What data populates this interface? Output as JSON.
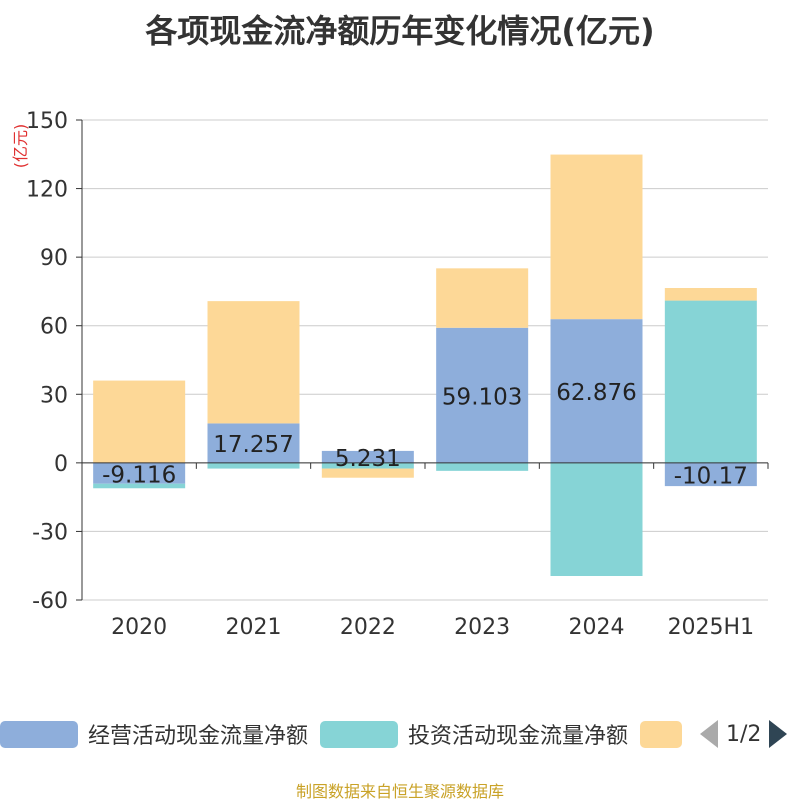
{
  "title": "各项现金流净额历年变化情况(亿元)",
  "source": "制图数据来自恒生聚源数据库",
  "pager": {
    "text": "1/2",
    "prev_icon": "triangle-left-icon",
    "next_icon": "triangle-right-icon"
  },
  "colors": {
    "operating": "#8eaedb",
    "investing": "#86d4d6",
    "financing": "#fdd897",
    "ylabel": "#e03030",
    "grid": "#cccccc",
    "axis": "#333333"
  },
  "chart_data": {
    "type": "bar",
    "stacked": true,
    "title": "各项现金流净额历年变化情况(亿元)",
    "ylabel": "(亿元)",
    "categories": [
      "2020",
      "2021",
      "2022",
      "2023",
      "2024",
      "2025H1"
    ],
    "ylim": [
      -60,
      150
    ],
    "yticks": [
      -60,
      -30,
      0,
      30,
      60,
      90,
      120,
      150
    ],
    "grid": true,
    "legend_position": "bottom",
    "series": [
      {
        "name": "经营活动现金流量净额",
        "values": [
          -9.116,
          17.257,
          5.231,
          59.103,
          62.876,
          -10.17
        ],
        "labels": [
          "-9.116",
          "17.257",
          "5.231",
          "59.103",
          "62.876",
          "-10.17"
        ]
      },
      {
        "name": "投资活动现金流量净额",
        "values": [
          -2,
          -2.5,
          -2.5,
          -3.5,
          -49.5,
          71
        ]
      },
      {
        "values": [
          36,
          53.5,
          -4,
          26,
          72,
          5.5
        ]
      }
    ]
  }
}
